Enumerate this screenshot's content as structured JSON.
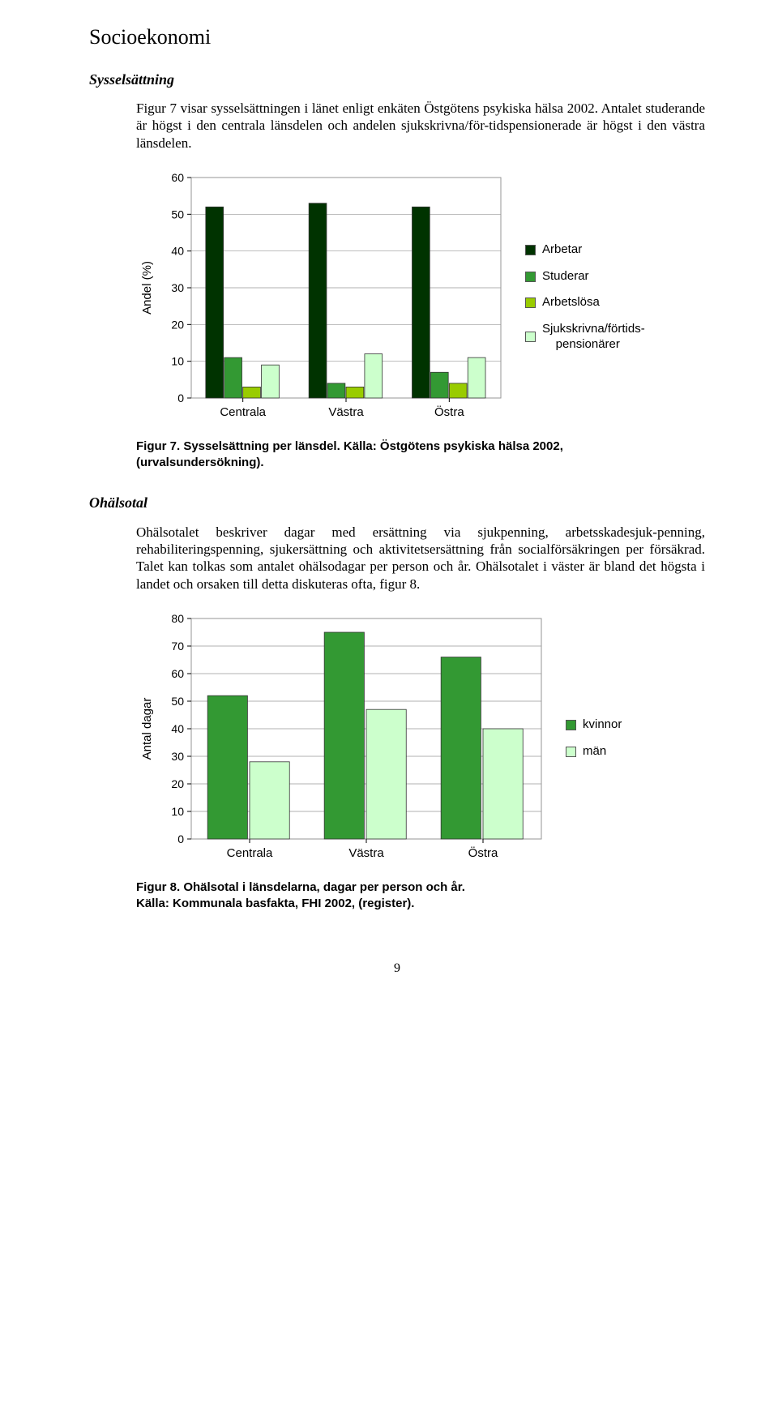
{
  "headings": {
    "main": "Socioekonomi",
    "sub1": "Sysselsättning",
    "sub2": "Ohälsotal"
  },
  "paragraphs": {
    "p1": "Figur 7 visar sysselsättningen i länet enligt enkäten Östgötens psykiska hälsa 2002. Antalet studerande är högst i den centrala länsdelen och andelen sjukskrivna/för-tidspensionerade är högst i den västra länsdelen.",
    "p2": "Ohälsotalet beskriver dagar med ersättning via sjukpenning, arbetsskadesjuk-penning, rehabiliteringspenning, sjukersättning och aktivitetsersättning från socialförsäkringen per försäkrad. Talet kan tolkas som antalet ohälsodagar per person och år. Ohälsotalet i väster är bland det högsta i landet och orsaken till detta diskuteras ofta, figur 8."
  },
  "figure7": {
    "caption": "Figur 7. Sysselsättning per länsdel. Källa: Östgötens psykiska hälsa 2002, (urvalsundersökning).",
    "type": "bar-grouped",
    "ylabel": "Andel (%)",
    "categories": [
      "Centrala",
      "Västra",
      "Östra"
    ],
    "series": [
      {
        "name": "Arbetar",
        "color": "#003300",
        "values": [
          52,
          53,
          52
        ]
      },
      {
        "name": "Studerar",
        "color": "#339933",
        "values": [
          11,
          4,
          7
        ]
      },
      {
        "name": "Arbetslösa",
        "color": "#99cc00",
        "values": [
          3,
          3,
          4
        ]
      },
      {
        "name": "Sjukskrivna/förtids-\npensionärer",
        "color": "#ccffcc",
        "values": [
          9,
          12,
          11
        ]
      }
    ],
    "ylim": [
      0,
      60
    ],
    "ytick_step": 10,
    "grid_color": "#969696",
    "plot_bg": "#ffffff",
    "bar_border": "#333333",
    "label_fontsize": 14,
    "tick_fontsize": 14
  },
  "figure8": {
    "caption_l1": "Figur 8. Ohälsotal i länsdelarna, dagar per person och år.",
    "caption_l2": "Källa: Kommunala basfakta, FHI 2002, (register).",
    "type": "bar-grouped",
    "ylabel": "Antal dagar",
    "categories": [
      "Centrala",
      "Västra",
      "Östra"
    ],
    "series": [
      {
        "name": "kvinnor",
        "color": "#339933",
        "values": [
          52,
          75,
          66
        ]
      },
      {
        "name": "män",
        "color": "#ccffcc",
        "values": [
          28,
          47,
          40
        ]
      }
    ],
    "ylim": [
      0,
      80
    ],
    "ytick_step": 10,
    "grid_color": "#969696",
    "plot_bg": "#ffffff",
    "bar_border": "#333333"
  },
  "page_number": "9"
}
